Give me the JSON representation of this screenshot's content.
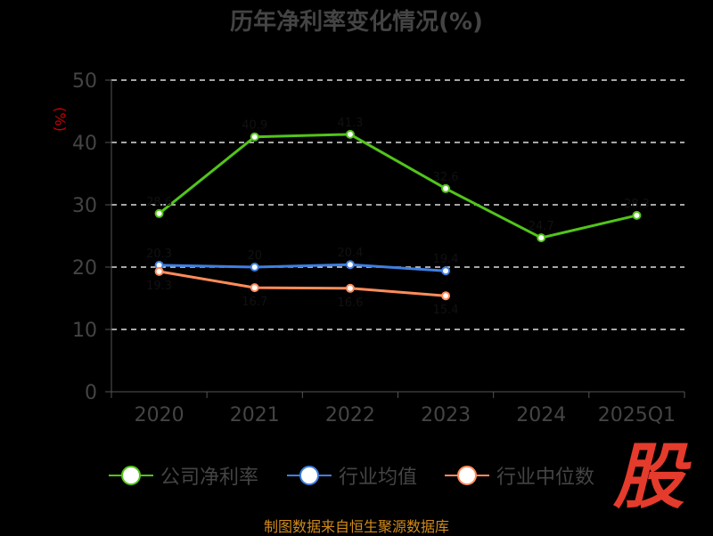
{
  "chart_data": {
    "type": "line",
    "title": "历年净利率变化情况(%)",
    "ylabel": "(%)",
    "xlabel": "",
    "categories": [
      "2020",
      "2021",
      "2022",
      "2023",
      "2024",
      "2025Q1"
    ],
    "ylim": [
      0,
      50
    ],
    "yticks": [
      0,
      10,
      20,
      30,
      40,
      50
    ],
    "grid": true,
    "legend_position": "bottom",
    "series": [
      {
        "name": "公司净利率",
        "color": "#52c41a",
        "values": [
          28.6,
          40.9,
          41.3,
          32.6,
          24.7,
          28.3
        ]
      },
      {
        "name": "行业均值",
        "color": "#3f7fe0",
        "values": [
          20.3,
          20.0,
          20.4,
          19.4,
          null,
          null
        ]
      },
      {
        "name": "行业中位数",
        "color": "#ff8c5a",
        "values": [
          19.3,
          16.7,
          16.6,
          15.4,
          null,
          null
        ]
      }
    ]
  },
  "footer": {
    "source": "制图数据来自恒生聚源数据库",
    "logo_text": "股"
  }
}
